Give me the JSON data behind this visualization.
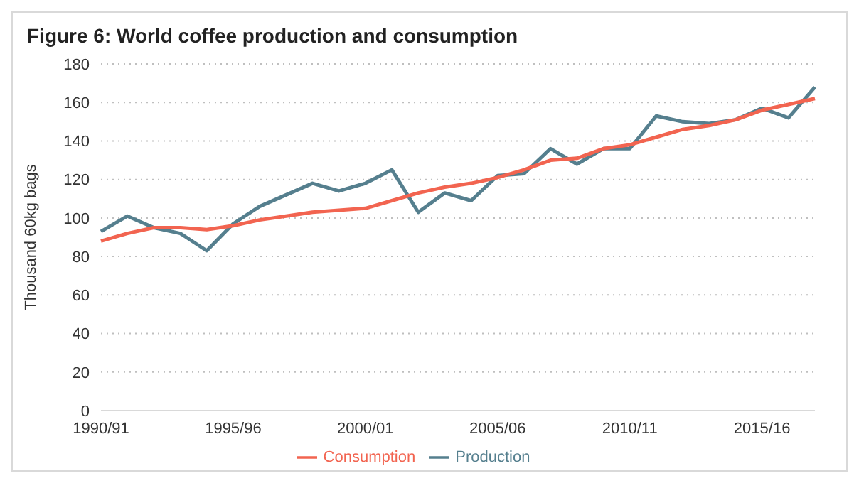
{
  "chart_data": {
    "type": "line",
    "title": "Figure 6: World coffee production  and consumption",
    "ylabel": "Thousand 60kg bags",
    "categories": [
      "1990/91",
      null,
      null,
      null,
      null,
      "1995/96",
      null,
      null,
      null,
      null,
      "2000/01",
      null,
      null,
      null,
      null,
      "2005/06",
      null,
      null,
      null,
      null,
      "2010/11",
      null,
      null,
      null,
      null,
      "2015/16",
      null,
      null
    ],
    "series": [
      {
        "name": "Production",
        "color": "#557f8e",
        "values": [
          93,
          101,
          95,
          92,
          83,
          97,
          106,
          112,
          118,
          114,
          118,
          125,
          103,
          113,
          109,
          122,
          123,
          136,
          128,
          136,
          136,
          153,
          150,
          149,
          151,
          157,
          152,
          168
        ]
      },
      {
        "name": "Consumption",
        "color": "#f26450",
        "values": [
          88,
          92,
          95,
          95,
          94,
          96,
          99,
          101,
          103,
          104,
          105,
          109,
          113,
          116,
          118,
          121,
          125,
          130,
          131,
          136,
          138,
          142,
          146,
          148,
          151,
          156,
          159,
          162
        ]
      }
    ],
    "ylim": [
      0,
      180
    ],
    "yticks": [
      0,
      20,
      40,
      60,
      80,
      100,
      120,
      140,
      160,
      180
    ],
    "grid": "y",
    "legend": "bottom",
    "marker": "none",
    "line_style": "solid"
  }
}
